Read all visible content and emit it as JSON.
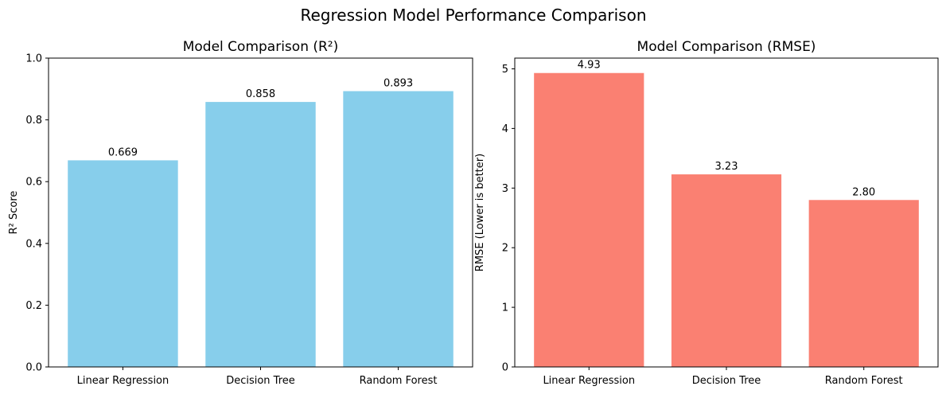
{
  "figure": {
    "title": "Regression Model Performance Comparison"
  },
  "chart_data": [
    {
      "type": "bar",
      "title": "Model Comparison (R²)",
      "xlabel": "",
      "ylabel": "R² Score",
      "categories": [
        "Linear Regression",
        "Decision Tree",
        "Random Forest"
      ],
      "values": [
        0.669,
        0.858,
        0.893
      ],
      "value_labels": [
        "0.669",
        "0.858",
        "0.893"
      ],
      "ylim": [
        0,
        1.0
      ],
      "yticks": [
        0.0,
        0.2,
        0.4,
        0.6,
        0.8,
        1.0
      ],
      "ytick_labels": [
        "0.0",
        "0.2",
        "0.4",
        "0.6",
        "0.8",
        "1.0"
      ],
      "bar_color": "#87CEEB",
      "grid": false
    },
    {
      "type": "bar",
      "title": "Model Comparison (RMSE)",
      "xlabel": "",
      "ylabel": "RMSE (Lower is better)",
      "categories": [
        "Linear Regression",
        "Decision Tree",
        "Random Forest"
      ],
      "values": [
        4.93,
        3.23,
        2.8
      ],
      "value_labels": [
        "4.93",
        "3.23",
        "2.80"
      ],
      "ylim": [
        0,
        5.18
      ],
      "yticks": [
        0,
        1,
        2,
        3,
        4,
        5
      ],
      "ytick_labels": [
        "0",
        "1",
        "2",
        "3",
        "4",
        "5"
      ],
      "bar_color": "#FA8072",
      "grid": false
    }
  ]
}
